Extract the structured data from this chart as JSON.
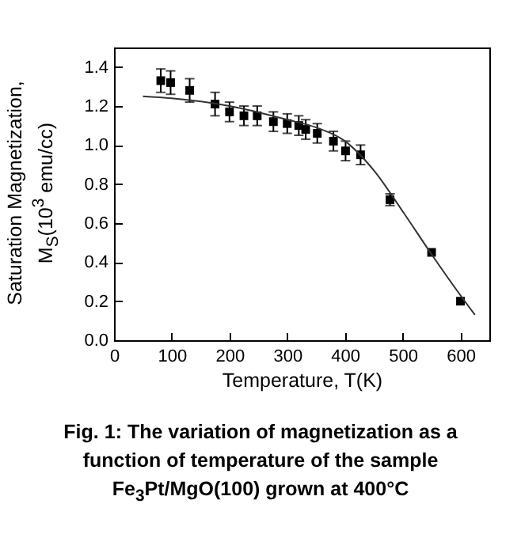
{
  "chart_data": {
    "type": "scatter",
    "xlabel": "Temperature, T(K)",
    "ylabel": "Saturation Magnetization, M$_{S}$(10$^{3}$ emu/cc)",
    "annotations": [
      "Fig. 1: The variation of magnetization as a function of temperature of the sample Fe$_{3}$Pt/MgO(100) grown at 400°C"
    ],
    "xlim": [
      0,
      650
    ],
    "xticks": [
      0,
      100,
      200,
      300,
      400,
      500,
      600
    ],
    "ylim": [
      0,
      1.5
    ],
    "yticks": [
      {
        "value": 0,
        "label": "0.0"
      },
      0.2,
      0.4,
      0.6,
      0.8,
      {
        "value": 1,
        "label": "1.0"
      },
      1.2,
      1.4
    ],
    "grid": false,
    "series": [
      {
        "color": "#000000",
        "marker": "square",
        "x": [
          81,
          98,
          131,
          175,
          200,
          225,
          248,
          276,
          300,
          320,
          332,
          352,
          380,
          401,
          427,
          478,
          550,
          600
        ],
        "values": [
          1.33,
          1.32,
          1.28,
          1.21,
          1.17,
          1.15,
          1.15,
          1.12,
          1.11,
          1.1,
          1.08,
          1.06,
          1.02,
          0.97,
          0.95,
          0.72,
          0.45,
          0.2
        ],
        "errors": [
          0.06,
          0.06,
          0.06,
          0.06,
          0.05,
          0.05,
          0.05,
          0.05,
          0.05,
          0.05,
          0.05,
          0.05,
          0.05,
          0.05,
          0.05,
          0.03,
          null,
          null
        ]
      },
      {
        "type": "line",
        "color": "#333333",
        "x": [
          50,
          100,
          200,
          300,
          350,
          400,
          450,
          500,
          550,
          600,
          625
        ],
        "values": [
          1.25,
          1.24,
          1.2,
          1.13,
          1.09,
          1.02,
          0.87,
          0.66,
          0.44,
          0.23,
          0.13
        ]
      }
    ]
  }
}
